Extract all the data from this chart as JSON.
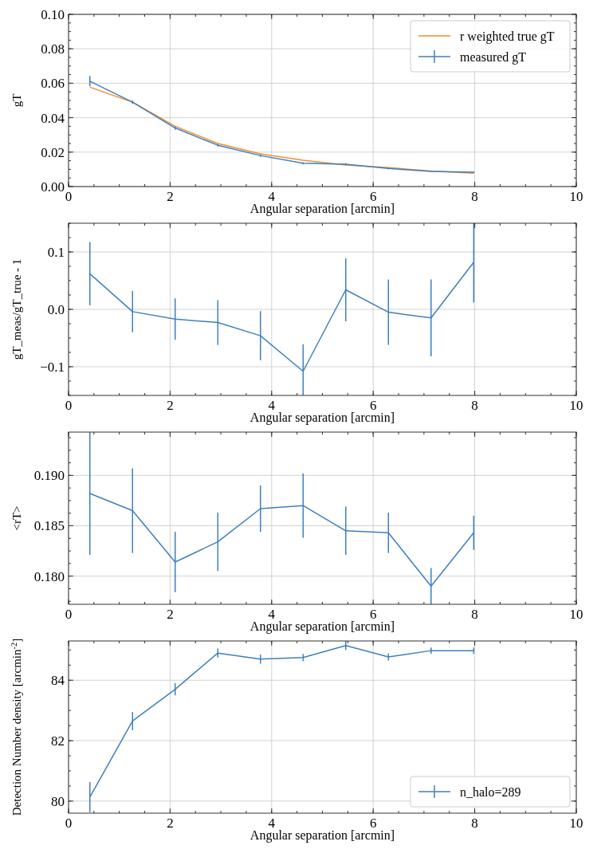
{
  "chart_data": [
    {
      "type": "line",
      "xlabel": "Angular separation [arcmin]",
      "ylabel": "gT",
      "xlim": [
        0,
        10
      ],
      "xticks": [
        0,
        2,
        4,
        6,
        8,
        10
      ],
      "ylim": [
        0,
        0.1
      ],
      "yticks": [
        {
          "value": 0,
          "label": "0.00"
        },
        {
          "value": 0.02,
          "label": "0.02"
        },
        {
          "value": 0.04,
          "label": "0.04"
        },
        {
          "value": 0.06,
          "label": "0.06"
        },
        {
          "value": 0.08,
          "label": "0.08"
        },
        {
          "value": 0.1,
          "label": "0.10"
        }
      ],
      "grid": true,
      "legend": "top right",
      "x": [
        0.42,
        1.26,
        2.1,
        2.94,
        3.78,
        4.62,
        5.46,
        6.3,
        7.14,
        7.98
      ],
      "series": [
        {
          "name": "r weighted true gT",
          "color": "#f28e2b",
          "values": [
            0.0577,
            0.049,
            0.035,
            0.025,
            0.019,
            0.0153,
            0.0125,
            0.011,
            0.009,
            0.0078
          ]
        },
        {
          "name": "measured gT",
          "color": "#3f7fbf",
          "values": [
            0.0612,
            0.049,
            0.034,
            0.024,
            0.018,
            0.0135,
            0.013,
            0.0105,
            0.0088,
            0.0083
          ],
          "errors": [
            0.003,
            0.001,
            0.001,
            0.0008,
            0.0008,
            0.0006,
            0.0006,
            0.0005,
            0.0004,
            0.0004
          ]
        }
      ]
    },
    {
      "type": "line",
      "xlabel": "Angular separation [arcmin]",
      "ylabel": "gT_meas/gT_true - 1",
      "xlim": [
        0,
        10
      ],
      "xticks": [
        0,
        2,
        4,
        6,
        8,
        10
      ],
      "ylim": [
        -0.15,
        0.15
      ],
      "yticks": [
        {
          "value": -0.1,
          "label": "−0.1"
        },
        {
          "value": 0,
          "label": "0.0"
        },
        {
          "value": 0.1,
          "label": "0.1"
        }
      ],
      "grid": true,
      "x": [
        0.42,
        1.26,
        2.1,
        2.94,
        3.78,
        4.62,
        5.46,
        6.3,
        7.14,
        7.98
      ],
      "series": [
        {
          "color": "#3f7fbf",
          "values": [
            0.062,
            -0.004,
            -0.017,
            -0.023,
            -0.046,
            -0.108,
            0.034,
            -0.005,
            -0.015,
            0.082
          ],
          "errors": [
            0.055,
            0.036,
            0.036,
            0.039,
            0.043,
            0.047,
            0.055,
            0.057,
            0.067,
            0.07
          ]
        }
      ]
    },
    {
      "type": "line",
      "xlabel": "Angular separation [arcmin]",
      "ylabel": "<rT>",
      "xlim": [
        0,
        10
      ],
      "xticks": [
        0,
        2,
        4,
        6,
        8,
        10
      ],
      "ylim": [
        0.1772,
        0.1943
      ],
      "yticks": [
        {
          "value": 0.18,
          "label": "0.180"
        },
        {
          "value": 0.185,
          "label": "0.185"
        },
        {
          "value": 0.19,
          "label": "0.190"
        }
      ],
      "grid": true,
      "x": [
        0.42,
        1.26,
        2.1,
        2.94,
        3.78,
        4.62,
        5.46,
        6.3,
        7.14,
        7.98
      ],
      "series": [
        {
          "color": "#3f7fbf",
          "values": [
            0.1882,
            0.1865,
            0.1814,
            0.1834,
            0.1867,
            0.187,
            0.1845,
            0.1843,
            0.179,
            0.1843
          ],
          "errors": [
            0.0061,
            0.0042,
            0.003,
            0.0029,
            0.0023,
            0.0032,
            0.0024,
            0.002,
            0.0018,
            0.0017
          ]
        }
      ]
    },
    {
      "type": "line",
      "xlabel": "Angular separation [arcmin]",
      "ylabel": "Detection Number density [arcmin$^{-2}$]",
      "xlim": [
        0,
        10
      ],
      "xticks": [
        0,
        2,
        4,
        6,
        8,
        10
      ],
      "ylim": [
        79.6,
        85.3
      ],
      "yticks": [
        80,
        82,
        84
      ],
      "grid": true,
      "legend": "bottom right",
      "x": [
        0.42,
        1.26,
        2.1,
        2.94,
        3.78,
        4.62,
        5.46,
        6.3,
        7.14,
        7.98
      ],
      "series": [
        {
          "name": "n_halo=289",
          "color": "#3f7fbf",
          "values": [
            80.13,
            82.65,
            83.7,
            84.9,
            84.7,
            84.75,
            85.15,
            84.77,
            84.98,
            84.98
          ],
          "errors": [
            0.5,
            0.3,
            0.2,
            0.15,
            0.15,
            0.12,
            0.15,
            0.12,
            0.1,
            0.1
          ]
        }
      ]
    }
  ]
}
